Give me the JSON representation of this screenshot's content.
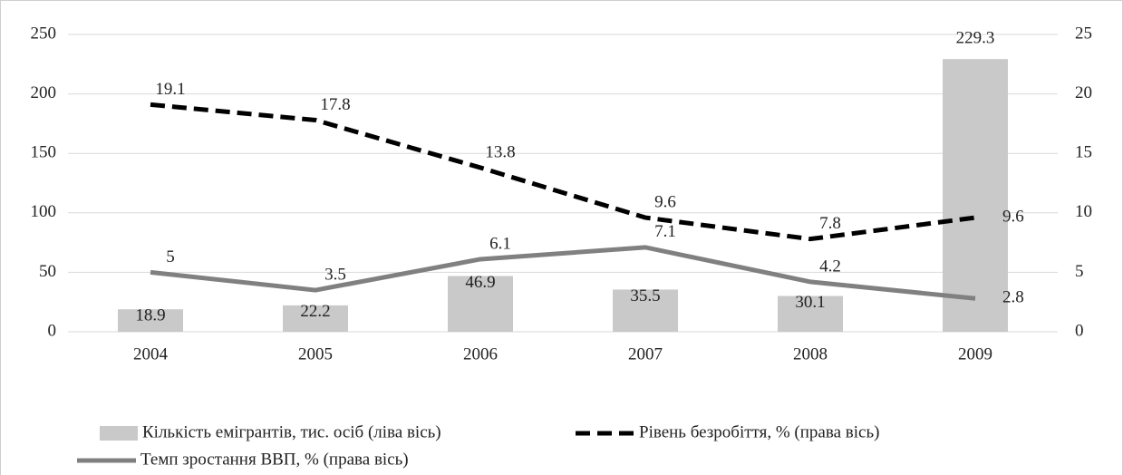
{
  "chart_data": {
    "type": "bar_line",
    "categories": [
      "2004",
      "2005",
      "2006",
      "2007",
      "2008",
      "2009"
    ],
    "series": [
      {
        "name": "Кількість емігрантів, тис. осіб (ліва вісь)",
        "type": "bar",
        "color": "#c9c9c9",
        "values": [
          18.9,
          22.2,
          46.9,
          35.5,
          30.1,
          229.3
        ]
      },
      {
        "name": "Рівень безробіття, % (права вісь)",
        "type": "line",
        "dash": true,
        "color": "#000000",
        "axis": "y2",
        "values": [
          19.1,
          17.8,
          13.8,
          9.6,
          7.8,
          9.6
        ]
      },
      {
        "name": "Темп зростання ВВП, % (права вісь)",
        "type": "line",
        "dash": false,
        "color": "#808080",
        "axis": "y2",
        "values": [
          5,
          3.5,
          6.1,
          7.1,
          4.2,
          2.8
        ]
      }
    ],
    "ylim": [
      0,
      250
    ],
    "yticks": [
      0,
      50,
      100,
      150,
      200,
      250
    ],
    "y2lim": [
      0,
      25
    ],
    "y2ticks": [
      0,
      5,
      10,
      15,
      20,
      25
    ],
    "grid": true,
    "legend": "bottom"
  }
}
